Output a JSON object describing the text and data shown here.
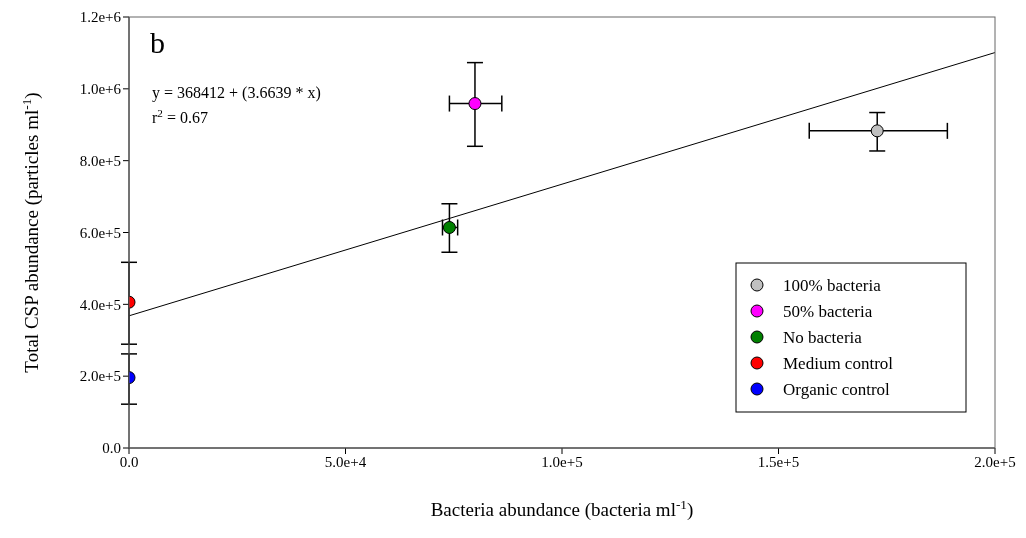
{
  "chart_data": {
    "type": "scatter",
    "xlabel": "Bacteria abundance (bacteria ml$^{-1}$)",
    "ylabel": "Total CSP abundance (particles ml$^{-1}$)",
    "annotations": [
      "b",
      "y = 368412 + (3.6639 * x)",
      "r$^{2}$ = 0.67"
    ],
    "xlim": [
      0,
      200000
    ],
    "xticks": [
      {
        "value": 0,
        "label": "0.0"
      },
      {
        "value": 50000,
        "label": "5.0e+4"
      },
      {
        "value": 100000,
        "label": "1.0e+5"
      },
      {
        "value": 150000,
        "label": "1.5e+5"
      },
      {
        "value": 200000,
        "label": "2.0e+5"
      }
    ],
    "ylim": [
      0,
      1200000
    ],
    "yticks": [
      {
        "value": 0,
        "label": "0.0"
      },
      {
        "value": 200000,
        "label": "2.0e+5"
      },
      {
        "value": 400000,
        "label": "4.0e+5"
      },
      {
        "value": 600000,
        "label": "6.0e+5"
      },
      {
        "value": 800000,
        "label": "8.0e+5"
      },
      {
        "value": 1000000,
        "label": "1.0e+6"
      },
      {
        "value": 1200000,
        "label": "1.2e+6"
      }
    ],
    "legend": "bottom right",
    "marker": "circle",
    "series": [
      {
        "type": "line",
        "marker": "none",
        "color": "#000000",
        "x": [
          0,
          200000
        ],
        "values": [
          368000,
          1101000
        ]
      },
      {
        "name": "100% bacteria",
        "color": "#c0c0c0",
        "x": [
          172800
        ],
        "values": [
          883000
        ],
        "errors": [
          [
            827000,
            934000
          ]
        ],
        "xerrors": [
          [
            157100,
            189000
          ]
        ]
      },
      {
        "name": "50% bacteria",
        "color": "#ff00ff",
        "x": [
          79900
        ],
        "values": [
          959000
        ],
        "errors": [
          [
            840000,
            1073000
          ]
        ],
        "xerrors": [
          [
            74000,
            86100
          ]
        ]
      },
      {
        "name": "No bacteria",
        "color": "#008000",
        "x": [
          74000
        ],
        "values": [
          614000
        ],
        "errors": [
          [
            545000,
            680000
          ]
        ],
        "xerrors": [
          [
            72400,
            75900
          ]
        ]
      },
      {
        "name": "Medium control",
        "color": "#ff0000",
        "x": [
          0
        ],
        "values": [
          406000
        ],
        "errors": [
          [
            289000,
            517000
          ]
        ]
      },
      {
        "name": "Organic control",
        "color": "#0000ff",
        "x": [
          0
        ],
        "values": [
          196000
        ],
        "errors": [
          [
            122000,
            262000
          ]
        ]
      }
    ]
  }
}
